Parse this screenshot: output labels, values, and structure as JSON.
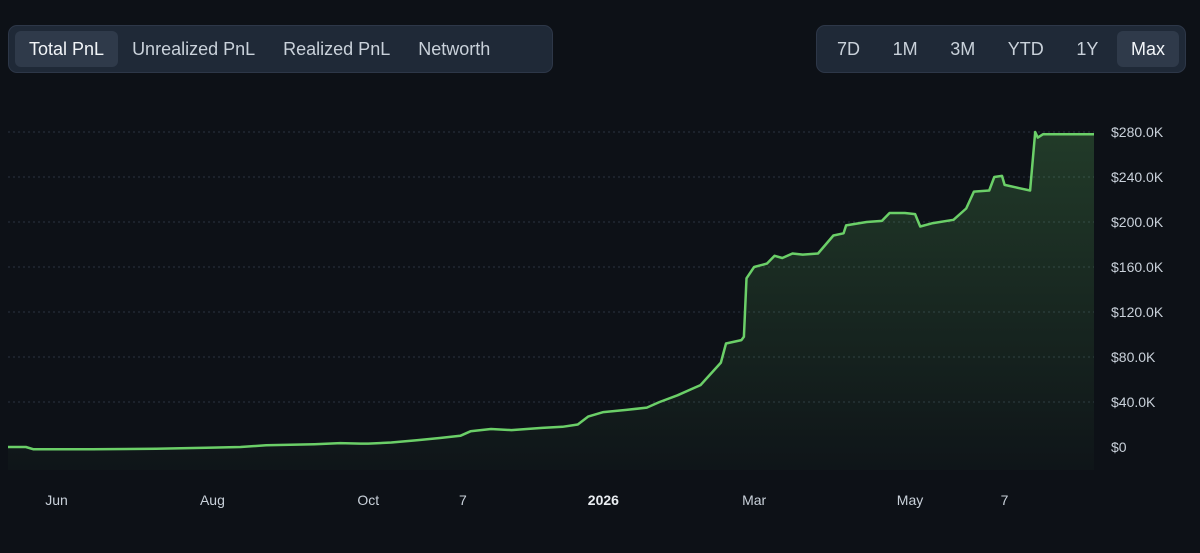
{
  "tabs_left": [
    {
      "label": "Total PnL",
      "active": true
    },
    {
      "label": "Unrealized PnL",
      "active": false
    },
    {
      "label": "Realized PnL",
      "active": false
    },
    {
      "label": "Networth",
      "active": false
    }
  ],
  "tabs_right": [
    {
      "label": "7D",
      "active": false
    },
    {
      "label": "1M",
      "active": false
    },
    {
      "label": "3M",
      "active": false
    },
    {
      "label": "YTD",
      "active": false
    },
    {
      "label": "1Y",
      "active": false
    },
    {
      "label": "Max",
      "active": true
    }
  ],
  "colors": {
    "line": "#6bcf68",
    "grid": "#2b3441",
    "background": "#0d1117"
  },
  "chart_data": {
    "type": "area",
    "title": "",
    "xlabel": "",
    "ylabel": "",
    "ylim": [
      0,
      280000
    ],
    "y_ticks": [
      {
        "value": 0,
        "label": "$0"
      },
      {
        "value": 40000,
        "label": "$40.0K"
      },
      {
        "value": 80000,
        "label": "$80.0K"
      },
      {
        "value": 120000,
        "label": "$120.0K"
      },
      {
        "value": 160000,
        "label": "$160.0K"
      },
      {
        "value": 200000,
        "label": "$200.0K"
      },
      {
        "value": 240000,
        "label": "$240.0K"
      },
      {
        "value": 280000,
        "label": "$280.0K"
      }
    ],
    "x_range": [
      "2025-05-13",
      "2026-07-12"
    ],
    "x_ticks": [
      {
        "date": "2025-06-01",
        "label": "Jun",
        "bold": false
      },
      {
        "date": "2025-08-01",
        "label": "Aug",
        "bold": false
      },
      {
        "date": "2025-10-01",
        "label": "Oct",
        "bold": false
      },
      {
        "date": "2025-11-07",
        "label": "7",
        "bold": false
      },
      {
        "date": "2026-01-01",
        "label": "2026",
        "bold": true
      },
      {
        "date": "2026-03-01",
        "label": "Mar",
        "bold": false
      },
      {
        "date": "2026-05-01",
        "label": "May",
        "bold": false
      },
      {
        "date": "2026-06-07",
        "label": "7",
        "bold": false
      }
    ],
    "grid": true,
    "legend": "none",
    "series": [
      {
        "points": [
          [
            "2025-05-13",
            0
          ],
          [
            "2025-05-20",
            0
          ],
          [
            "2025-05-23",
            -2000
          ],
          [
            "2025-06-15",
            -2000
          ],
          [
            "2025-07-10",
            -1500
          ],
          [
            "2025-08-01",
            -500
          ],
          [
            "2025-08-12",
            0
          ],
          [
            "2025-08-22",
            1500
          ],
          [
            "2025-09-10",
            2500
          ],
          [
            "2025-09-20",
            3500
          ],
          [
            "2025-09-28",
            3000
          ],
          [
            "2025-10-01",
            3000
          ],
          [
            "2025-10-10",
            4000
          ],
          [
            "2025-10-20",
            6000
          ],
          [
            "2025-10-29",
            8000
          ],
          [
            "2025-11-06",
            10000
          ],
          [
            "2025-11-10",
            14000
          ],
          [
            "2025-11-18",
            16000
          ],
          [
            "2025-11-26",
            15000
          ],
          [
            "2025-12-08",
            17000
          ],
          [
            "2025-12-16",
            18000
          ],
          [
            "2025-12-22",
            20000
          ],
          [
            "2025-12-26",
            27000
          ],
          [
            "2026-01-01",
            31000
          ],
          [
            "2026-01-10",
            33000
          ],
          [
            "2026-01-18",
            35000
          ],
          [
            "2026-01-23",
            40000
          ],
          [
            "2026-01-30",
            46000
          ],
          [
            "2026-02-05",
            52000
          ],
          [
            "2026-02-08",
            55000
          ],
          [
            "2026-02-12",
            65000
          ],
          [
            "2026-02-16",
            75000
          ],
          [
            "2026-02-18",
            92000
          ],
          [
            "2026-02-24",
            95000
          ],
          [
            "2026-02-25",
            98000
          ],
          [
            "2026-02-26",
            150000
          ],
          [
            "2026-03-01",
            160000
          ],
          [
            "2026-03-06",
            163000
          ],
          [
            "2026-03-09",
            170000
          ],
          [
            "2026-03-12",
            168000
          ],
          [
            "2026-03-16",
            172000
          ],
          [
            "2026-03-20",
            171000
          ],
          [
            "2026-03-26",
            172000
          ],
          [
            "2026-03-29",
            180000
          ],
          [
            "2026-04-01",
            188000
          ],
          [
            "2026-04-05",
            190000
          ],
          [
            "2026-04-06",
            197000
          ],
          [
            "2026-04-14",
            200000
          ],
          [
            "2026-04-20",
            201000
          ],
          [
            "2026-04-23",
            208000
          ],
          [
            "2026-04-29",
            208000
          ],
          [
            "2026-05-03",
            207000
          ],
          [
            "2026-05-05",
            196000
          ],
          [
            "2026-05-10",
            199000
          ],
          [
            "2026-05-18",
            202000
          ],
          [
            "2026-05-23",
            212000
          ],
          [
            "2026-05-26",
            227000
          ],
          [
            "2026-06-01",
            228000
          ],
          [
            "2026-06-03",
            240000
          ],
          [
            "2026-06-06",
            241000
          ],
          [
            "2026-06-07",
            233000
          ],
          [
            "2026-06-13",
            230000
          ],
          [
            "2026-06-17",
            228000
          ],
          [
            "2026-06-19",
            280000
          ],
          [
            "2026-06-20",
            275000
          ],
          [
            "2026-06-22",
            278000
          ],
          [
            "2026-07-12",
            278000
          ]
        ]
      }
    ]
  }
}
